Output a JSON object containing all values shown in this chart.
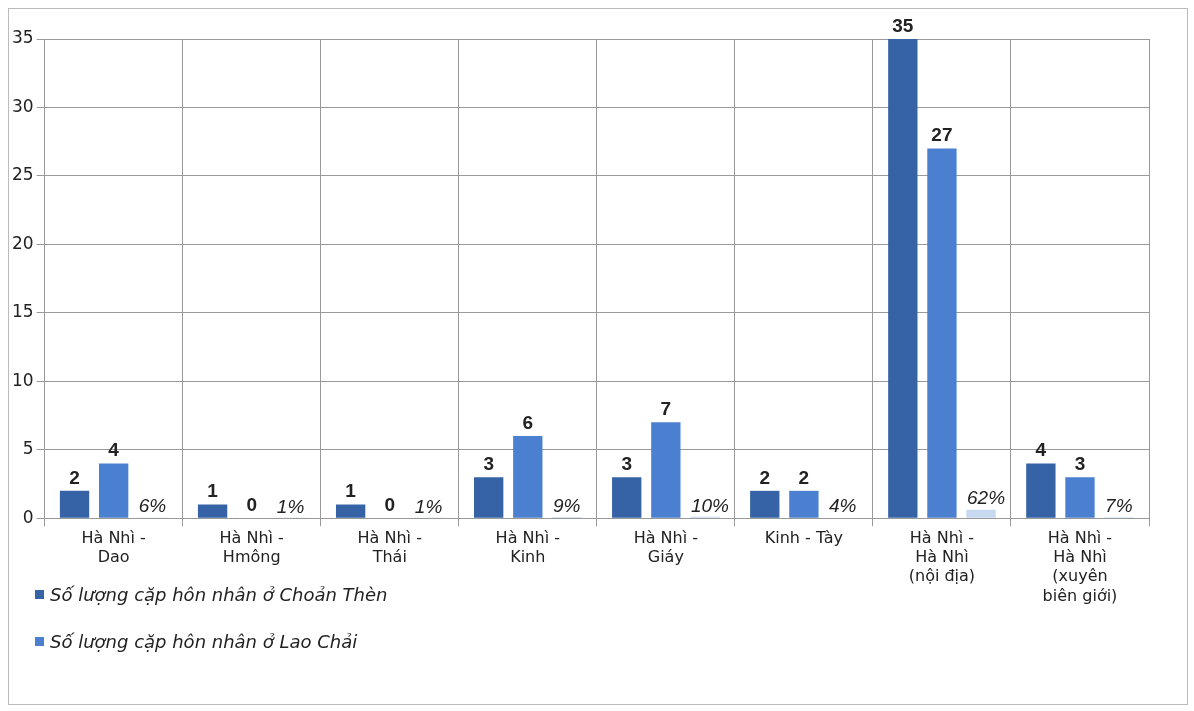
{
  "chart_data": {
    "type": "bar",
    "categories": [
      "Hà Nhì -\nDao",
      "Hà Nhì -\nHmông",
      "Hà Nhì -\nThái",
      "Hà Nhì -\nKinh",
      "Hà Nhì -\nGiáy",
      "Kinh - Tày",
      "Hà Nhì -\nHà Nhì\n(nội địa)",
      "Hà Nhì -\nHà Nhì\n(xuyên\nbiên giới)"
    ],
    "series": [
      {
        "name": "Số lượng cặp hôn nhân ở Choản Thèn",
        "color": "#3563a6",
        "values": [
          2,
          1,
          1,
          3,
          3,
          2,
          35,
          4
        ],
        "value_labels": [
          "2",
          "1",
          "1",
          "3",
          "3",
          "2",
          "35",
          "4"
        ]
      },
      {
        "name": "Số lượng cặp hôn nhân ở Lao Chải",
        "color": "#4a80cf",
        "values": [
          4,
          0,
          0,
          6,
          7,
          2,
          27,
          3
        ],
        "value_labels": [
          "4",
          "0",
          "0",
          "6",
          "7",
          "2",
          "27",
          "3"
        ]
      },
      {
        "color": "#c6d9f1",
        "values": [
          0.06,
          0.01,
          0.01,
          0.09,
          0.1,
          0.04,
          0.62,
          0.07
        ],
        "value_labels": [
          "6%",
          "1%",
          "1%",
          "9%",
          "10%",
          "4%",
          "62%",
          "7%"
        ]
      }
    ],
    "ylim": [
      0,
      35
    ],
    "yticks": [
      0,
      5,
      10,
      15,
      20,
      25,
      30,
      35
    ],
    "grid": true,
    "legend": "bottom left"
  }
}
